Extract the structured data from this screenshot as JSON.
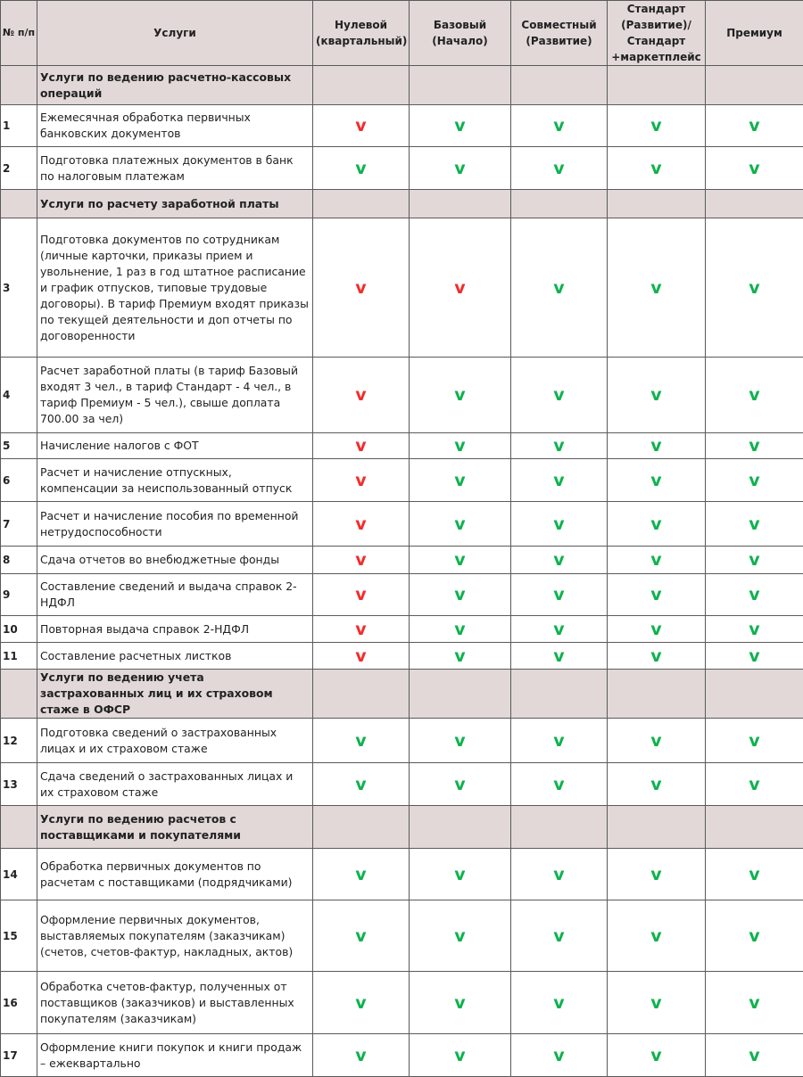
{
  "header": {
    "num": "№ п/п",
    "service": "Услуги",
    "plans": [
      "Нулевой (квартальный)",
      "Базовый (Начало)",
      "Совместный (Развитие)",
      "Стандарт (Развитие)/ Стандарт +маркетплейс",
      "Премиум"
    ]
  },
  "colors": {
    "included": "#0fb24f",
    "not_included": "#f22d2d",
    "section_bg": "#e2d8d8"
  },
  "mark_glyph": "v",
  "rows": [
    {
      "type": "section",
      "text": "Услуги по ведению расчетно-кассовых операций"
    },
    {
      "type": "item",
      "num": "1",
      "text": "Ежемесячная обработка первичных банковских документов",
      "marks": [
        "red",
        "green",
        "green",
        "green",
        "green"
      ]
    },
    {
      "type": "item",
      "num": "2",
      "text": "Подготовка платежных документов в банк по налоговым платежам",
      "marks": [
        "green",
        "green",
        "green",
        "green",
        "green"
      ]
    },
    {
      "type": "section",
      "text": "Услуги по расчету заработной платы"
    },
    {
      "type": "item",
      "num": "3",
      "text": "Подготовка документов по сотрудникам (личные карточки, приказы прием и увольнение, 1 раз в год  штатное расписание и график отпусков, типовые трудовые договоры). В тариф Премиум входят приказы по текущей деятельности и доп отчеты по договоренности",
      "marks": [
        "red",
        "red",
        "green",
        "green",
        "green"
      ]
    },
    {
      "type": "item",
      "num": "4",
      "text": "Расчет заработной платы (в тариф Базовый входят 3 чел., в тариф Стандарт - 4 чел., в тариф Премиум - 5 чел.), свыше доплата 700.00 за чел)",
      "marks": [
        "red",
        "green",
        "green",
        "green",
        "green"
      ]
    },
    {
      "type": "item",
      "num": "5",
      "text": "Начисление налогов с ФОТ",
      "marks": [
        "red",
        "green",
        "green",
        "green",
        "green"
      ]
    },
    {
      "type": "item",
      "num": "6",
      "text": "Расчет и начисление отпускных, компенсации за неиспользованный отпуск",
      "marks": [
        "red",
        "green",
        "green",
        "green",
        "green"
      ]
    },
    {
      "type": "item",
      "num": "7",
      "text": "Расчет и начисление пособия по временной нетрудоспособности",
      "marks": [
        "red",
        "green",
        "green",
        "green",
        "green"
      ]
    },
    {
      "type": "item",
      "num": "8",
      "text": "Сдача отчетов во внебюджетные фонды",
      "marks": [
        "red",
        "green",
        "green",
        "green",
        "green"
      ]
    },
    {
      "type": "item",
      "num": "9",
      "text": "Составление сведений и выдача справок 2-НДФЛ",
      "marks": [
        "red",
        "green",
        "green",
        "green",
        "green"
      ]
    },
    {
      "type": "item",
      "num": "10",
      "text": "Повторная выдача справок 2-НДФЛ",
      "marks": [
        "red",
        "green",
        "green",
        "green",
        "green"
      ]
    },
    {
      "type": "item",
      "num": "11",
      "text": "Составление расчетных листков",
      "marks": [
        "red",
        "green",
        "green",
        "green",
        "green"
      ]
    },
    {
      "type": "section",
      "text": "Услуги по ведению учета застрахованных лиц и их страховом стаже в ОФСР"
    },
    {
      "type": "item",
      "num": "12",
      "text": "Подготовка сведений о застрахованных лицах и их страховом стаже",
      "marks": [
        "green",
        "green",
        "green",
        "green",
        "green"
      ]
    },
    {
      "type": "item",
      "num": "13",
      "text": "Сдача сведений о застрахованных лицах и их страховом стаже",
      "marks": [
        "green",
        "green",
        "green",
        "green",
        "green"
      ]
    },
    {
      "type": "section",
      "text": "Услуги по ведению расчетов с поставщиками и покупателями"
    },
    {
      "type": "item",
      "num": "14",
      "text": "Обработка первичных документов по расчетам с поставщиками (подрядчиками)",
      "marks": [
        "green",
        "green",
        "green",
        "green",
        "green"
      ]
    },
    {
      "type": "item",
      "num": "15",
      "text": "Оформление первичных документов, выставляемых покупателям (заказчикам) (счетов, счетов-фактур, накладных, актов)",
      "marks": [
        "green",
        "green",
        "green",
        "green",
        "green"
      ]
    },
    {
      "type": "item",
      "num": "16",
      "text": "Обработка счетов-фактур, полученных от поставщиков (заказчиков) и выставленных покупателям (заказчикам)",
      "marks": [
        "green",
        "green",
        "green",
        "green",
        "green"
      ]
    },
    {
      "type": "item",
      "num": "17",
      "text": "Оформление книги покупок и книги продаж – ежеквартально",
      "marks": [
        "green",
        "green",
        "green",
        "green",
        "green"
      ]
    }
  ]
}
